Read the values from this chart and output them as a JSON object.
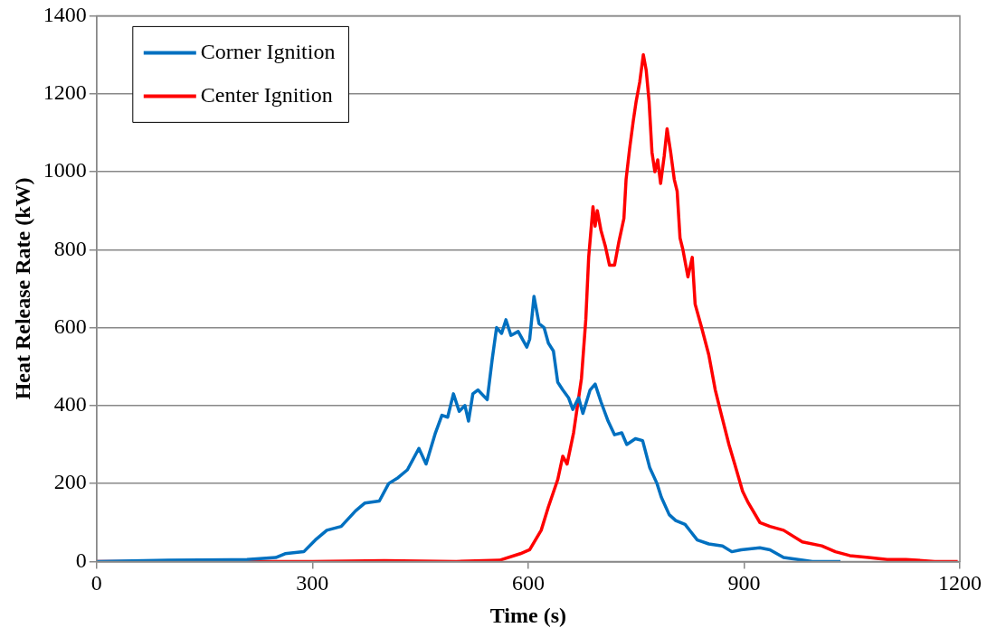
{
  "chart_data": {
    "type": "line",
    "xlabel": "Time (s)",
    "ylabel": "Heat Release Rate (kW)",
    "xlim": [
      0,
      1200
    ],
    "xticks": [
      0,
      300,
      600,
      900,
      1200
    ],
    "ylim": [
      0,
      1400
    ],
    "yticks": [
      0,
      200,
      400,
      600,
      800,
      1000,
      1200,
      1400
    ],
    "grid": "y",
    "legend": "top left",
    "marker": "none",
    "line_style": "solid",
    "series": [
      {
        "name": "Corner Ignition",
        "color": "#0070c0",
        "x": [
          0,
          100,
          209,
          249,
          262,
          288,
          304,
          320,
          340,
          360,
          373,
          393,
          406,
          419,
          432,
          448,
          458,
          471,
          480,
          488,
          496,
          504,
          512,
          517,
          523,
          530,
          543,
          550,
          556,
          563,
          569,
          576,
          586,
          598,
          602,
          608,
          615,
          622,
          628,
          635,
          641,
          648,
          656,
          662,
          670,
          676,
          686,
          693,
          701,
          711,
          720,
          730,
          737,
          749,
          759,
          769,
          779,
          785,
          796,
          805,
          818,
          835,
          851,
          870,
          883,
          896,
          922,
          936,
          955,
          975,
          995,
          1034
        ],
        "values": [
          0,
          3,
          5,
          10,
          20,
          25,
          55,
          80,
          90,
          130,
          150,
          155,
          200,
          215,
          235,
          290,
          250,
          330,
          375,
          370,
          430,
          385,
          400,
          360,
          430,
          440,
          415,
          520,
          600,
          585,
          620,
          580,
          590,
          550,
          570,
          680,
          610,
          600,
          560,
          540,
          460,
          440,
          420,
          390,
          420,
          380,
          440,
          455,
          410,
          360,
          325,
          330,
          300,
          315,
          310,
          240,
          200,
          165,
          120,
          105,
          95,
          55,
          45,
          40,
          25,
          30,
          35,
          30,
          10,
          5,
          0,
          0
        ]
      },
      {
        "name": "Center Ignition",
        "color": "#ff0000",
        "x": [
          0,
          300,
          400,
          500,
          560,
          589,
          602,
          618,
          628,
          641,
          648,
          654,
          663,
          674,
          680,
          684,
          690,
          693,
          696,
          701,
          707,
          713,
          720,
          726,
          733,
          736,
          741,
          746,
          750,
          755,
          760,
          764,
          768,
          772,
          776,
          780,
          784,
          789,
          793,
          798,
          803,
          807,
          811,
          815,
          822,
          828,
          832,
          841,
          851,
          860,
          868,
          879,
          887,
          898,
          906,
          922,
          936,
          955,
          981,
          1008,
          1027,
          1047,
          1073,
          1099,
          1125,
          1165,
          1197
        ],
        "values": [
          0,
          0,
          2,
          0,
          3,
          20,
          30,
          80,
          140,
          210,
          270,
          250,
          330,
          470,
          620,
          780,
          910,
          860,
          900,
          850,
          810,
          760,
          760,
          820,
          880,
          980,
          1060,
          1130,
          1180,
          1230,
          1300,
          1260,
          1180,
          1050,
          1000,
          1030,
          970,
          1040,
          1110,
          1050,
          980,
          950,
          830,
          800,
          730,
          780,
          660,
          600,
          530,
          440,
          380,
          300,
          250,
          180,
          150,
          100,
          90,
          80,
          50,
          40,
          25,
          15,
          10,
          5,
          5,
          0,
          0
        ]
      }
    ]
  }
}
